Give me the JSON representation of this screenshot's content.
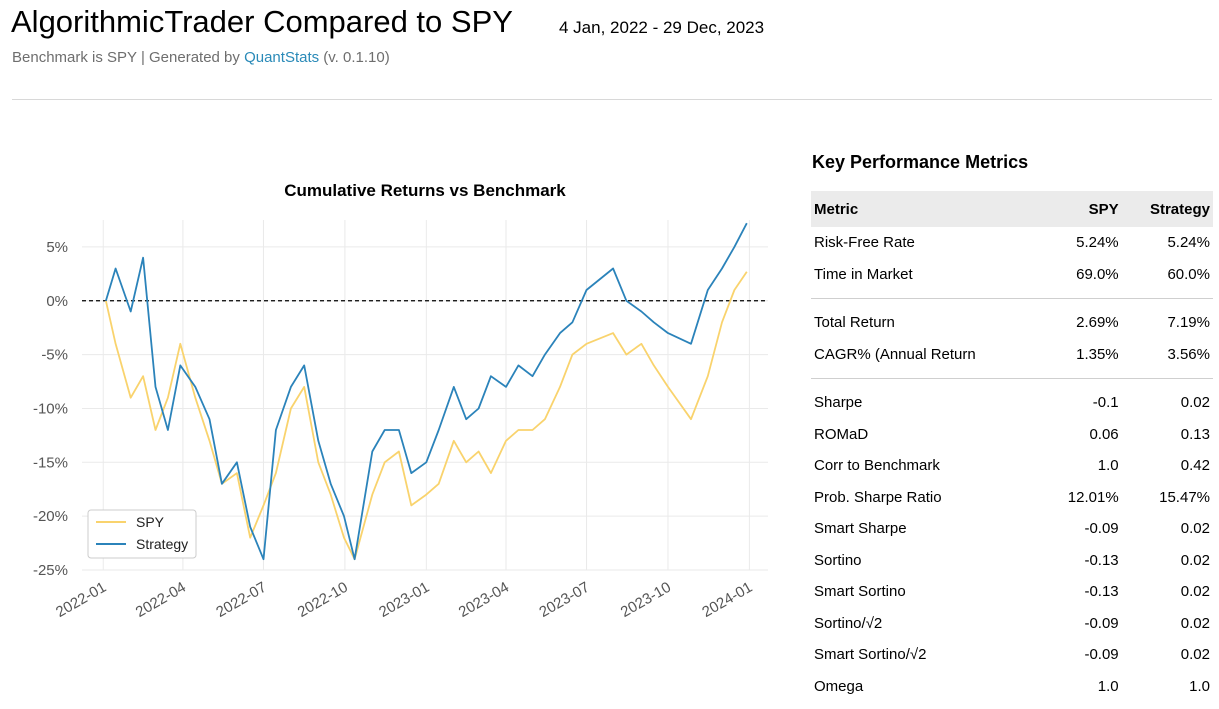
{
  "header": {
    "title": "AlgorithmicTrader Compared to SPY",
    "date_range": "4 Jan, 2022 - 29 Dec, 2023",
    "subtitle_prefix": "Benchmark is SPY | Generated by ",
    "subtitle_link": "QuantStats",
    "subtitle_suffix": " (v. 0.1.10)"
  },
  "colors": {
    "spy": "#f9d36d",
    "strategy": "#2b83ba",
    "link": "#2a8ab8"
  },
  "chart_data": {
    "type": "line",
    "title": "Cumulative Returns vs Benchmark",
    "xlabel": "",
    "ylabel": "",
    "x_ticks": [
      "2022-01",
      "2022-04",
      "2022-07",
      "2022-10",
      "2023-01",
      "2023-04",
      "2023-07",
      "2023-10",
      "2024-01"
    ],
    "y_ticks": [
      "5%",
      "0%",
      "-5%",
      "-10%",
      "-15%",
      "-20%",
      "-25%"
    ],
    "ylim": [
      -25,
      7.5
    ],
    "grid": true,
    "baseline": 0,
    "legend_position": "bottom-left",
    "x": [
      "2022-01-04",
      "2022-01-15",
      "2022-02-01",
      "2022-02-15",
      "2022-03-01",
      "2022-03-15",
      "2022-03-29",
      "2022-04-15",
      "2022-05-01",
      "2022-05-15",
      "2022-06-01",
      "2022-06-16",
      "2022-07-01",
      "2022-07-15",
      "2022-08-01",
      "2022-08-16",
      "2022-09-01",
      "2022-09-15",
      "2022-09-30",
      "2022-10-12",
      "2022-11-01",
      "2022-11-15",
      "2022-12-01",
      "2022-12-15",
      "2023-01-01",
      "2023-01-15",
      "2023-02-01",
      "2023-02-15",
      "2023-03-01",
      "2023-03-15",
      "2023-04-01",
      "2023-04-15",
      "2023-05-01",
      "2023-05-15",
      "2023-06-01",
      "2023-06-15",
      "2023-07-01",
      "2023-07-31",
      "2023-08-15",
      "2023-09-01",
      "2023-09-15",
      "2023-10-01",
      "2023-10-27",
      "2023-11-15",
      "2023-12-01",
      "2023-12-15",
      "2023-12-29"
    ],
    "series": [
      {
        "name": "SPY",
        "values": [
          0,
          -4,
          -9,
          -7,
          -12,
          -9,
          -4,
          -9,
          -13,
          -17,
          -16,
          -22,
          -19,
          -16,
          -10,
          -8,
          -15,
          -18,
          -22,
          -24,
          -18,
          -15,
          -14,
          -19,
          -18,
          -17,
          -13,
          -15,
          -14,
          -16,
          -13,
          -12,
          -12,
          -11,
          -8,
          -5,
          -4,
          -3,
          -5,
          -4,
          -6,
          -8,
          -11,
          -7,
          -2,
          1,
          2.7
        ]
      },
      {
        "name": "Strategy",
        "values": [
          0,
          3,
          -1,
          4,
          -8,
          -12,
          -6,
          -8,
          -11,
          -17,
          -15,
          -21,
          -24,
          -12,
          -8,
          -6,
          -13,
          -17,
          -20,
          -24,
          -14,
          -12,
          -12,
          -16,
          -15,
          -12,
          -8,
          -11,
          -10,
          -7,
          -8,
          -6,
          -7,
          -5,
          -3,
          -2,
          1,
          3,
          0,
          -1,
          -2,
          -3,
          -4,
          1,
          3,
          5,
          7.2
        ]
      }
    ]
  },
  "metrics": {
    "title": "Key Performance Metrics",
    "headers": [
      "Metric",
      "SPY",
      "Strategy"
    ],
    "groups": [
      [
        [
          "Risk-Free Rate",
          "5.24%",
          "5.24%"
        ],
        [
          "Time in Market",
          "69.0%",
          "60.0%"
        ]
      ],
      [
        [
          "Total Return",
          "2.69%",
          "7.19%"
        ],
        [
          "CAGR% (Annual Return",
          "1.35%",
          "3.56%"
        ]
      ],
      [
        [
          "Sharpe",
          "-0.1",
          "0.02"
        ],
        [
          "ROMaD",
          "0.06",
          "0.13"
        ],
        [
          "Corr to Benchmark",
          "1.0",
          "0.42"
        ],
        [
          "Prob. Sharpe Ratio",
          "12.01%",
          "15.47%"
        ],
        [
          "Smart Sharpe",
          "-0.09",
          "0.02"
        ],
        [
          "Sortino",
          "-0.13",
          "0.02"
        ],
        [
          "Smart Sortino",
          "-0.13",
          "0.02"
        ],
        [
          "Sortino/√2",
          "-0.09",
          "0.02"
        ],
        [
          "Smart Sortino/√2",
          "-0.09",
          "0.02"
        ],
        [
          "Omega",
          "1.0",
          "1.0"
        ]
      ]
    ]
  }
}
